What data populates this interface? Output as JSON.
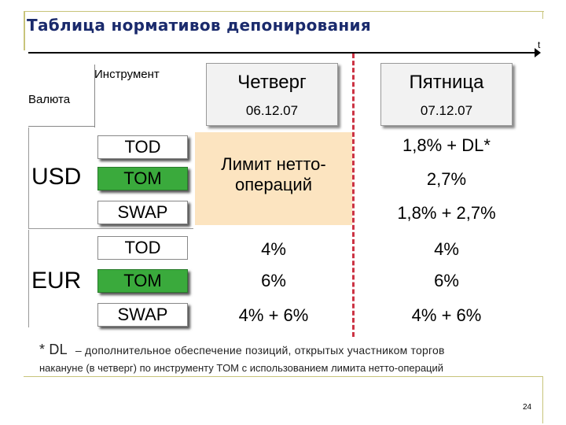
{
  "title": "Таблица нормативов депонирования",
  "axis_label": "t",
  "header": {
    "instrument": "Инструмент",
    "currency": "Валюта"
  },
  "days": [
    {
      "name": "Четверг",
      "date": "06.12.07"
    },
    {
      "name": "Пятница",
      "date": "07.12.07"
    }
  ],
  "usd": {
    "currency": "USD",
    "instruments": [
      "TOD",
      "TOM",
      "SWAP"
    ],
    "thursday_limit": [
      "Лимит нетто-",
      "операций"
    ],
    "friday": [
      "1,8% + DL*",
      "2,7%",
      "1,8% + 2,7%"
    ]
  },
  "eur": {
    "currency": "EUR",
    "instruments": [
      "TOD",
      "TOM",
      "SWAP"
    ],
    "thursday": [
      "4%",
      "6%",
      "4% + 6%"
    ],
    "friday": [
      "4%",
      "6%",
      "4% + 6%"
    ]
  },
  "footnote": {
    "star": "* DL",
    "line1": "– дополнительное обеспечение позиций, открытых участником торгов",
    "line2": "накануне (в четверг) по инструменту TOM с использованием лимита нетто-операций"
  },
  "page_number": "24",
  "colors": {
    "title": "#1a2a6c",
    "tom_green": "#3aaa3c",
    "limit_fill": "#fce4c0",
    "redline": "#cc3344"
  }
}
